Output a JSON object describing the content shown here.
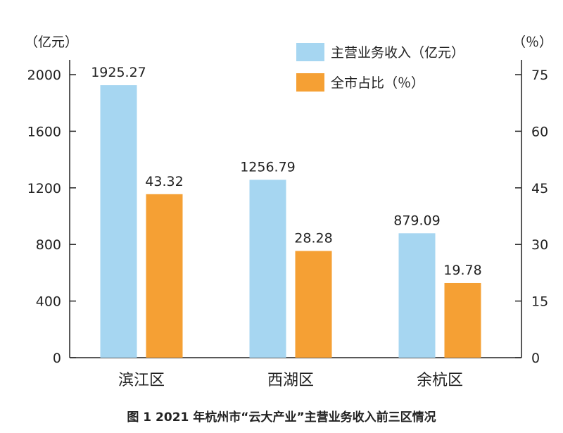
{
  "caption": "图 1   2021 年杭州市“云大产业”主营业务收入前三区情况",
  "chart_data": {
    "type": "bar",
    "categories": [
      "滨江区",
      "西湖区",
      "余杭区"
    ],
    "series": [
      {
        "name": "主营业务收入（亿元）",
        "axis": "left",
        "color": "#a6d6f1",
        "values": [
          1925.27,
          1256.79,
          879.09
        ],
        "labels": [
          "1925.27",
          "1256.79",
          "879.09"
        ]
      },
      {
        "name": "全市占比（％）",
        "axis": "right",
        "color": "#f5a034",
        "values": [
          43.32,
          28.28,
          19.78
        ],
        "labels": [
          "43.32",
          "28.28",
          "19.78"
        ]
      }
    ],
    "y_left": {
      "unit": "（亿元）",
      "ylim": [
        0,
        2000
      ],
      "ticks": [
        0,
        400,
        800,
        1200,
        1600,
        2000
      ]
    },
    "y_right": {
      "unit": "（％）",
      "ylim": [
        0,
        75
      ],
      "ticks": [
        0,
        15,
        30,
        45,
        60,
        75
      ]
    },
    "legend": "top-right",
    "grid": false
  }
}
